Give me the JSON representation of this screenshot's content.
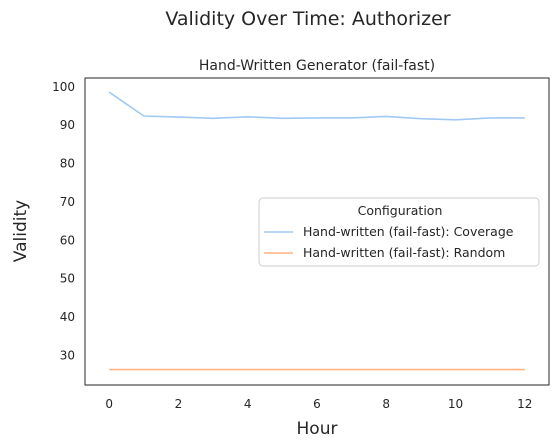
{
  "figure": {
    "suptitle": "Validity Over Time: Authorizer"
  },
  "chart_data": {
    "type": "line",
    "title": "Hand-Written Generator (fail-fast)",
    "xlabel": "Hour",
    "ylabel": "Validity",
    "xlim": [
      -0.7,
      12.7
    ],
    "ylim": [
      22.3,
      102.3
    ],
    "xticks": [
      0,
      2,
      4,
      6,
      8,
      10,
      12
    ],
    "yticks": [
      30,
      40,
      50,
      60,
      70,
      80,
      90,
      100
    ],
    "grid": false,
    "legend": {
      "title": "Configuration",
      "placement": "center-right"
    },
    "series": [
      {
        "name": "Hand-written (fail-fast): Coverage",
        "color": "#a1c9f4",
        "x": [
          0,
          1,
          2,
          3,
          4,
          5,
          6,
          7,
          8,
          9,
          10,
          11,
          12
        ],
        "y": [
          98.6,
          92.4,
          92.1,
          91.8,
          92.2,
          91.8,
          91.9,
          91.9,
          92.3,
          91.7,
          91.4,
          91.9,
          91.9
        ]
      },
      {
        "name": "Hand-written (fail-fast): Random",
        "color": "#ffb482",
        "x": [
          0,
          1,
          2,
          3,
          4,
          5,
          6,
          7,
          8,
          9,
          10,
          11,
          12
        ],
        "y": [
          26.3,
          26.3,
          26.3,
          26.3,
          26.3,
          26.3,
          26.3,
          26.3,
          26.3,
          26.3,
          26.3,
          26.3,
          26.3
        ]
      }
    ]
  }
}
